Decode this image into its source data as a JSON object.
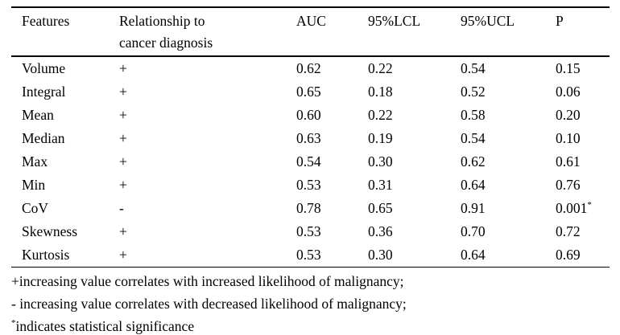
{
  "page": {
    "background_color": "#ffffff",
    "text_color": "#000000"
  },
  "table": {
    "header": {
      "features": "Features",
      "relationship_line1": "Relationship to",
      "relationship_line2": "cancer diagnosis",
      "auc": "AUC",
      "lcl95": "95%LCL",
      "ucl95": "95%UCL",
      "p": "P"
    },
    "rows": [
      {
        "feature": "Volume",
        "relationship": "+",
        "auc": "0.62",
        "lcl": "0.22",
        "ucl": "0.54",
        "p": "0.15",
        "p_sup": ""
      },
      {
        "feature": "Integral",
        "relationship": "+",
        "auc": "0.65",
        "lcl": "0.18",
        "ucl": "0.52",
        "p": "0.06",
        "p_sup": ""
      },
      {
        "feature": "Mean",
        "relationship": "+",
        "auc": "0.60",
        "lcl": "0.22",
        "ucl": "0.58",
        "p": "0.20",
        "p_sup": ""
      },
      {
        "feature": "Median",
        "relationship": "+",
        "auc": "0.63",
        "lcl": "0.19",
        "ucl": "0.54",
        "p": "0.10",
        "p_sup": ""
      },
      {
        "feature": "Max",
        "relationship": "+",
        "auc": "0.54",
        "lcl": "0.30",
        "ucl": "0.62",
        "p": "0.61",
        "p_sup": ""
      },
      {
        "feature": "Min",
        "relationship": "+",
        "auc": "0.53",
        "lcl": "0.31",
        "ucl": "0.64",
        "p": "0.76",
        "p_sup": ""
      },
      {
        "feature": "CoV",
        "relationship": "-",
        "auc": "0.78",
        "lcl": "0.65",
        "ucl": "0.91",
        "p": "0.001",
        "p_sup": "*"
      },
      {
        "feature": "Skewness",
        "relationship": "+",
        "auc": "0.53",
        "lcl": "0.36",
        "ucl": "0.70",
        "p": "0.72",
        "p_sup": ""
      },
      {
        "feature": "Kurtosis",
        "relationship": "+",
        "auc": "0.53",
        "lcl": "0.30",
        "ucl": "0.64",
        "p": "0.69",
        "p_sup": ""
      }
    ],
    "footnotes": {
      "line1": "+increasing value correlates with increased likelihood of malignancy;",
      "line2": "- increasing value correlates with decreased likelihood of malignancy;",
      "line3_sup": "*",
      "line3_text": "indicates statistical significance"
    }
  }
}
